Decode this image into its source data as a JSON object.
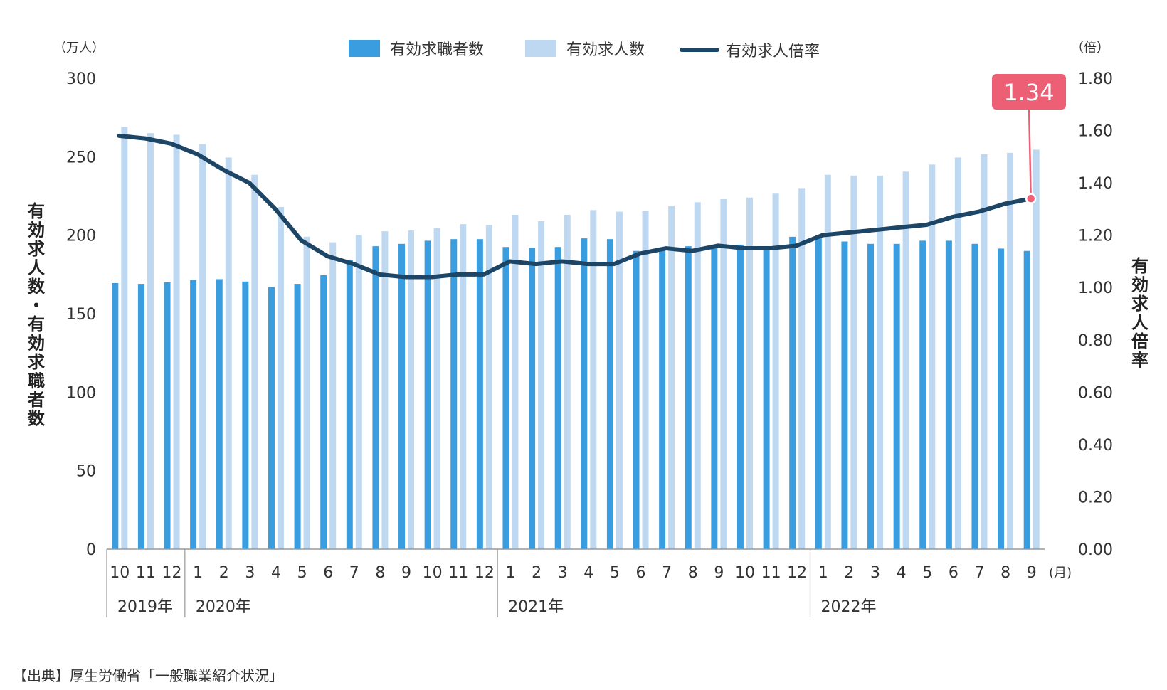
{
  "chart_data": {
    "type": "bar",
    "combo": "bar+line",
    "left_axis_unit": "（万人）",
    "right_axis_unit": "（倍）",
    "left_axis_title": "有効求人数・有効求職者数",
    "right_axis_title": "有効求人倍率",
    "left_ylim": [
      0,
      300
    ],
    "right_ylim": [
      0,
      1.8
    ],
    "left_ticks": [
      "0",
      "50",
      "100",
      "150",
      "200",
      "250",
      "300"
    ],
    "right_ticks": [
      "0.00",
      "0.20",
      "0.40",
      "0.60",
      "0.80",
      "1.00",
      "1.20",
      "1.40",
      "1.60",
      "1.80"
    ],
    "month_unit": "(月)",
    "categories": [
      "10",
      "11",
      "12",
      "1",
      "2",
      "3",
      "4",
      "5",
      "6",
      "7",
      "8",
      "9",
      "10",
      "11",
      "12",
      "1",
      "2",
      "3",
      "4",
      "5",
      "6",
      "7",
      "8",
      "9",
      "10",
      "11",
      "12",
      "1",
      "2",
      "3",
      "4",
      "5",
      "6",
      "7",
      "8",
      "9"
    ],
    "year_labels": [
      {
        "label": "2019年",
        "start_index": 0
      },
      {
        "label": "2020年",
        "start_index": 3
      },
      {
        "label": "2021年",
        "start_index": 15
      },
      {
        "label": "2022年",
        "start_index": 27
      }
    ],
    "series": [
      {
        "name": "有効求職者数",
        "type": "bar",
        "axis": "left",
        "color": "#3a9de0",
        "values": [
          169.5,
          169,
          170,
          171.5,
          172,
          170.5,
          167,
          169,
          174.5,
          184,
          193,
          194.5,
          196.5,
          197.5,
          197.5,
          192.5,
          192,
          192.5,
          198,
          197.5,
          190,
          191.5,
          193,
          192,
          194,
          193,
          199,
          199,
          196,
          194.5,
          194.5,
          196.5,
          196.5,
          194.5,
          191.5,
          190
        ]
      },
      {
        "name": "有効求人数",
        "type": "bar",
        "axis": "left",
        "color": "#bdd8f0",
        "values": [
          269,
          265,
          264,
          258,
          249.5,
          238.5,
          218,
          199,
          195.5,
          200,
          202.5,
          203,
          204.5,
          207,
          206.5,
          213,
          209,
          213,
          216,
          215,
          215.5,
          218.5,
          221,
          223,
          224,
          226.5,
          230,
          238.5,
          238,
          238,
          240.5,
          245,
          249.5,
          251.5,
          252.5,
          254.5
        ]
      },
      {
        "name": "有効求人倍率",
        "type": "line",
        "axis": "right",
        "color": "#1d4566",
        "values": [
          1.58,
          1.57,
          1.55,
          1.51,
          1.45,
          1.4,
          1.3,
          1.18,
          1.12,
          1.09,
          1.05,
          1.04,
          1.04,
          1.05,
          1.05,
          1.1,
          1.09,
          1.1,
          1.09,
          1.09,
          1.13,
          1.15,
          1.14,
          1.16,
          1.15,
          1.15,
          1.16,
          1.2,
          1.21,
          1.22,
          1.23,
          1.24,
          1.27,
          1.29,
          1.32,
          1.34
        ]
      }
    ],
    "callout": {
      "label": "1.34",
      "index": 35,
      "color": "#ec5f74"
    },
    "legend_placement": "top"
  },
  "source_note": "【出典】厚生労働省「一般職業紹介状況」"
}
